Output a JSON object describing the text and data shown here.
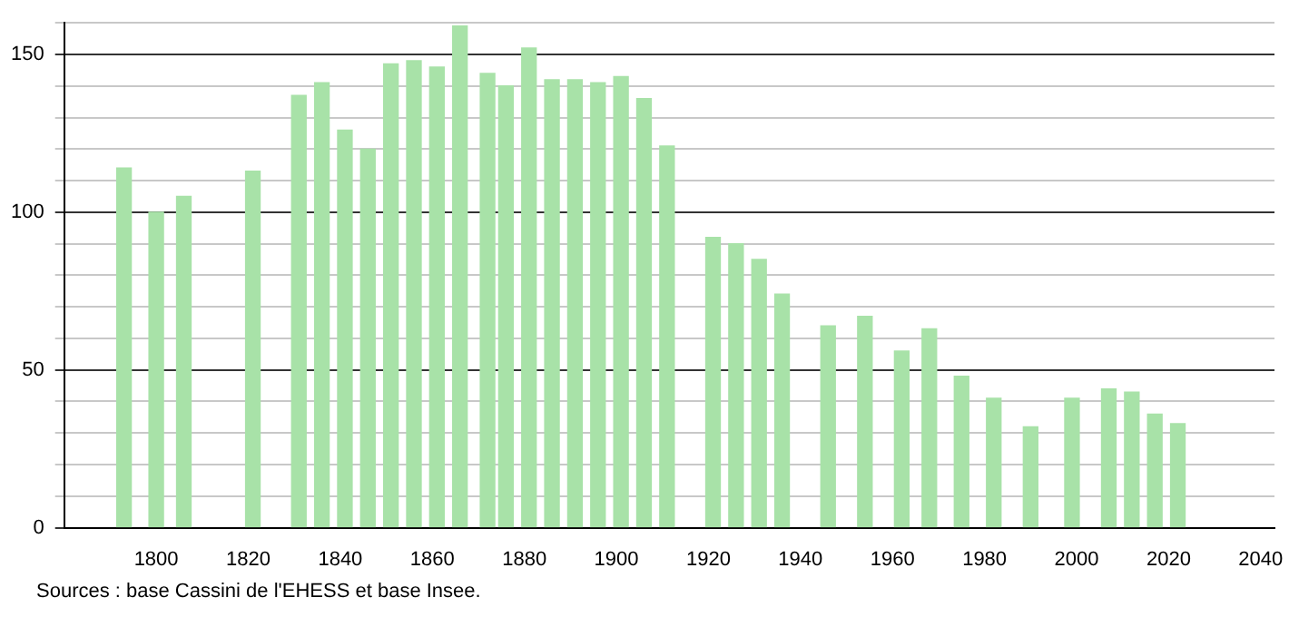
{
  "chart_data": {
    "type": "bar",
    "x": [
      1793,
      1800,
      1806,
      1821,
      1831,
      1836,
      1841,
      1846,
      1851,
      1856,
      1861,
      1866,
      1872,
      1876,
      1881,
      1886,
      1891,
      1896,
      1901,
      1906,
      1911,
      1921,
      1926,
      1931,
      1936,
      1946,
      1954,
      1962,
      1968,
      1975,
      1982,
      1990,
      1999,
      2007,
      2012,
      2017,
      2022
    ],
    "values": [
      114,
      100,
      105,
      113,
      137,
      141,
      126,
      120,
      147,
      148,
      146,
      159,
      144,
      140,
      152,
      142,
      142,
      141,
      143,
      136,
      121,
      92,
      90,
      85,
      74,
      64,
      67,
      56,
      63,
      48,
      41,
      32,
      41,
      44,
      43,
      36,
      33
    ],
    "color": "#a8e2a8",
    "xlim": [
      1780,
      2043
    ],
    "xticks": [
      1800,
      1820,
      1840,
      1860,
      1880,
      1900,
      1920,
      1940,
      1960,
      1980,
      2000,
      2020,
      2040
    ],
    "ylim": [
      0,
      160
    ],
    "yticks": [
      0,
      {
        "value": 10,
        "label": null
      },
      {
        "value": 20,
        "label": null
      },
      {
        "value": 30,
        "label": null
      },
      {
        "value": 40,
        "label": null
      },
      50,
      {
        "value": 60,
        "label": null
      },
      {
        "value": 70,
        "label": null
      },
      {
        "value": 80,
        "label": null
      },
      {
        "value": 90,
        "label": null
      },
      100,
      {
        "value": 110,
        "label": null
      },
      {
        "value": 120,
        "label": null
      },
      {
        "value": 130,
        "label": null
      },
      {
        "value": 140,
        "label": null
      },
      150,
      {
        "value": 160,
        "label": null
      }
    ],
    "grid": "y",
    "legend": false,
    "annotations": [
      "Sources : base Cassini de l'EHESS et base Insee."
    ]
  }
}
